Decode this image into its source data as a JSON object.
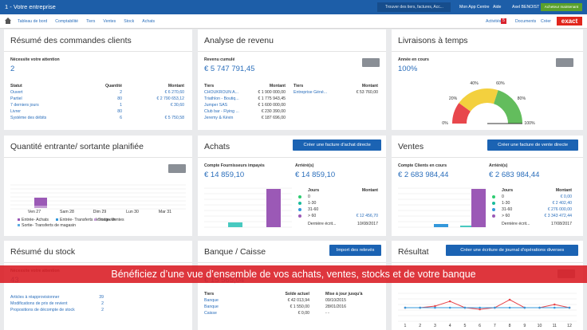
{
  "header": {
    "app": "1 - Votre entreprise",
    "search": "Trouver des tiers, factures, Acc...",
    "links": [
      "Mon App Centre",
      "Aide",
      "Axel BENOIST"
    ],
    "badge": "Acheteur maintenant"
  },
  "nav": {
    "items": [
      "Tableau de bord",
      "Comptabilité",
      "Tiers",
      "Ventes",
      "Stock",
      "Achats"
    ],
    "activities": "Activités",
    "count": "5",
    "documents": "Documents",
    "create": "Créer",
    "brand": "exact"
  },
  "orders": {
    "title": "Résumé des commandes clients",
    "label": "Nécessite votre attention",
    "value": "2",
    "headers": [
      "Statut",
      "Quantité",
      "Montant"
    ],
    "rows": [
      [
        "Ouvert",
        "2",
        "€ 6 270,60"
      ],
      [
        "Partiel",
        "80",
        "€ 2 790 653,12"
      ],
      [
        "7 derniers jours",
        "1",
        "€ 30,60"
      ],
      [
        "Livrer",
        "80"
      ],
      [
        "Système des débits",
        "6",
        "€ 5 750,58"
      ]
    ]
  },
  "revenue": {
    "title": "Analyse de revenu",
    "label": "Revenu cumulé",
    "value": "€ 5 747 791,45",
    "headers": [
      "Tiers",
      "Montant",
      "Tiers",
      "Montant"
    ],
    "rows": [
      [
        "CHOUKROUN A...",
        "€ 1 900 000,00",
        "Entreprise Géné...",
        "€ 53 760,00"
      ],
      [
        "Triathlon - Boutiq...",
        "€ 1 775 943,45"
      ],
      [
        "Jumper SAS",
        "€ 1 600 000,00"
      ],
      [
        "Club bar - Flying ...",
        "€ 230 390,00"
      ],
      [
        "Jeremy & Kévin",
        "€ 187 696,00"
      ]
    ]
  },
  "delivery": {
    "title": "Livraisons à temps",
    "label": "Année en cours",
    "value": "100%",
    "gauge_labels": [
      "0%",
      "20%",
      "40%",
      "60%",
      "80%",
      "100%"
    ]
  },
  "stockflow": {
    "title": "Quantité entrante/ sortante planifiée",
    "days": [
      "Ven 27",
      "Sam 28",
      "Dim 29",
      "Lun 30",
      "Mar 31"
    ],
    "legend": [
      "Entrée- Achats",
      "Entrée- Transferts de magasin",
      "Sortie- Ventes",
      "Sortie- Transferts de magasin"
    ]
  },
  "purchases": {
    "title": "Achats",
    "button": "Créer une facture d'achat directe",
    "label": "Compte Fournisseurs impayés",
    "value": "€ 14 859,10",
    "label2": "Arriéré(s)",
    "value2": "€ 14 859,10",
    "headers": [
      "Jours",
      "Montant"
    ],
    "rows": [
      [
        "0"
      ],
      [
        "1-30"
      ],
      [
        "31-60"
      ],
      [
        "> 60",
        "€ 12 456,70"
      ]
    ],
    "last": [
      "Dernière écrit...",
      "10/08/2017"
    ]
  },
  "sales": {
    "title": "Ventes",
    "button": "Créer une facture de vente directe",
    "label": "Compte Clients en cours",
    "value": "€ 2 683 984,44",
    "label2": "Arriéré(s)",
    "value2": "€ 2 683 984,44",
    "headers": [
      "Jours",
      "Montant"
    ],
    "rows": [
      [
        "0",
        "€ 0,00"
      ],
      [
        "1-30",
        "€ 2 402,40"
      ],
      [
        "31-60",
        "€ 276 000,00"
      ],
      [
        "> 60",
        "€ 3 343 472,44"
      ]
    ],
    "last": [
      "Dernière écrit...",
      "17/08/2017"
    ]
  },
  "stock": {
    "title": "Résumé du stock",
    "label": "Nécessite votre attention",
    "value": "43",
    "rows": [
      [
        "Articles à réapprovisionner",
        "39"
      ],
      [
        "Modifications de prix de revient",
        "2"
      ],
      [
        "Propositions de décompte de stock",
        "2"
      ]
    ]
  },
  "bank": {
    "title": "Banque / Caisse",
    "button": "Import des relevés",
    "value": "€ 15 565,04",
    "headers": [
      "Tiers",
      "Solde actuel",
      "Mise à jour jusqu'à"
    ],
    "rows": [
      [
        "Banque",
        "€ 42 013,94",
        "09/10/2015"
      ],
      [
        "Banque",
        "€ 1 550,00",
        "28/01/2016"
      ],
      [
        "Caisse",
        "€ 0,00",
        "- -"
      ]
    ]
  },
  "result": {
    "title": "Résultat",
    "button": "Créer une écriture de journal d'opérations diverses",
    "months": [
      "1",
      "2",
      "3",
      "4",
      "5",
      "6",
      "7",
      "8",
      "9",
      "10",
      "11",
      "12"
    ]
  },
  "banner": "Bénéficiez d’une vue d’ensemble de vos achats, ventes, stocks et de votre banque"
}
